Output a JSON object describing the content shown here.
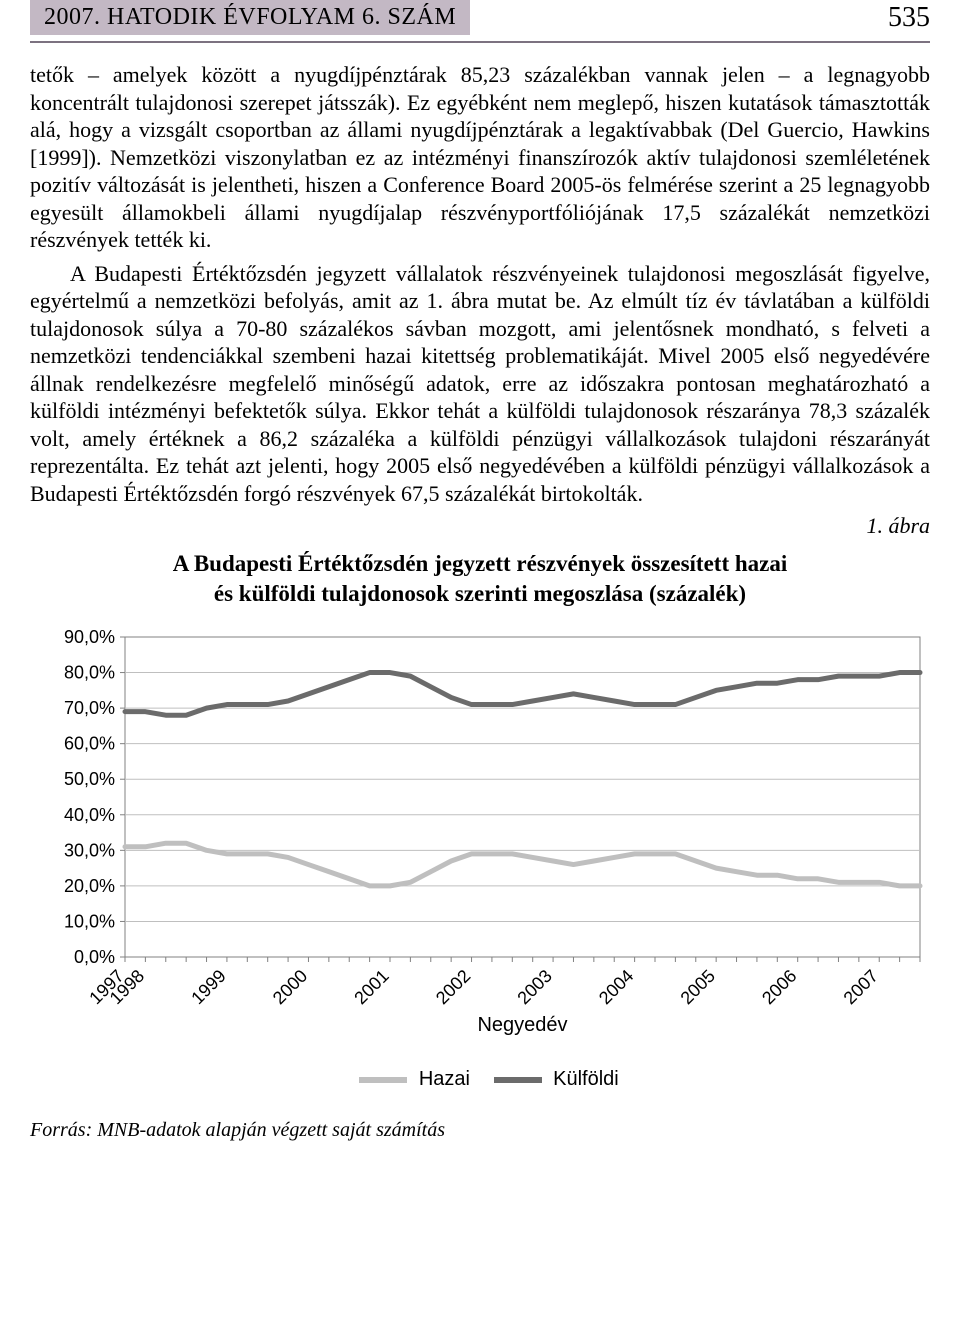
{
  "header": {
    "band_text": "2007. HATODIK ÉVFOLYAM 6. SZÁM",
    "page_number": "535"
  },
  "paragraphs": {
    "p1": "tetők – amelyek között a nyugdíjpénztárak 85,23 százalékban vannak jelen – a legnagyobb koncentrált tulajdonosi szerepet játsszák). Ez egyébként nem meglepő, hiszen kutatások támasztották alá, hogy a vizsgált csoportban az állami nyugdíjpénztárak a legaktívabbak (Del Guercio, Hawkins [1999]). Nemzetközi viszonylatban ez az intézményi finanszírozók aktív tulajdonosi szemléletének pozitív változását is jelentheti, hiszen a Conference Board 2005-ös felmérése szerint a 25 legnagyobb egyesült államokbeli állami nyugdíjalap részvényportfóliójának 17,5 százalékát nemzetközi részvények tették ki.",
    "p2": "A Budapesti Értéktőzsdén jegyzett vállalatok részvényeinek tulajdonosi megoszlását figyelve, egyértelmű a nemzetközi befolyás, amit az 1. ábra mutat be. Az elmúlt tíz év távlatában a külföldi tulajdonosok súlya a 70-80 százalékos sávban mozgott, ami jelentősnek mondható, s felveti a nemzetközi tendenciákkal szembeni hazai kitettség problematikáját. Mivel 2005 első negyedévére állnak rendelkezésre megfelelő minőségű adatok, erre az időszakra pontosan meghatározható a külföldi intézményi befektetők súlya. Ekkor tehát a külföldi tulajdonosok részaránya 78,3 százalék volt, amely értéknek a 86,2 százaléka a külföldi pénzügyi vállalkozások tulajdoni részarányát reprezentálta. Ez tehát azt jelenti, hogy 2005 első negyedévében a külföldi pénzügyi vállalkozások a Budapesti Értéktőzsdén forgó részvények 67,5 százalékát birtokolták."
  },
  "figure": {
    "label": "1. ábra",
    "title_line1": "A Budapesti Értéktőzsdén jegyzett részvények összesített hazai",
    "title_line2": "és külföldi tulajdonosok szerinti megoszlása (százalék)"
  },
  "chart": {
    "type": "line",
    "background_color": "#ffffff",
    "plot_background": "#ffffff",
    "plot_border_color": "#808080",
    "grid_color": "#bfbfbf",
    "axis_color": "#808080",
    "axis_font_family": "Arial",
    "axis_fontsize": 18,
    "axis_title_fontsize": 20,
    "x_axis_title": "Negyedév",
    "ylim": [
      0,
      90
    ],
    "ytick_step": 10,
    "ytick_labels": [
      "0,0%",
      "10,0%",
      "20,0%",
      "30,0%",
      "40,0%",
      "50,0%",
      "60,0%",
      "70,0%",
      "80,0%",
      "90,0%"
    ],
    "x_years": [
      "1997",
      "1998",
      "1999",
      "2000",
      "2001",
      "2002",
      "2003",
      "2004",
      "2005",
      "2006",
      "2007"
    ],
    "x_year_positions": [
      0,
      1,
      5,
      9,
      13,
      17,
      21,
      25,
      29,
      33,
      37
    ],
    "x_count": 40,
    "series": {
      "hazai": {
        "label": "Hazai",
        "color": "#bfbfbf",
        "width": 5,
        "values": [
          31,
          31,
          32,
          32,
          30,
          29,
          29,
          29,
          28,
          26,
          24,
          22,
          20,
          20,
          21,
          24,
          27,
          29,
          29,
          29,
          28,
          27,
          26,
          27,
          28,
          29,
          29,
          29,
          27,
          25,
          24,
          23,
          23,
          22,
          22,
          21,
          21,
          21,
          20,
          20
        ]
      },
      "kulfoldi": {
        "label": "Külföldi",
        "color": "#6b6b6b",
        "width": 5,
        "values": [
          69,
          69,
          68,
          68,
          70,
          71,
          71,
          71,
          72,
          74,
          76,
          78,
          80,
          80,
          79,
          76,
          73,
          71,
          71,
          71,
          72,
          73,
          74,
          73,
          72,
          71,
          71,
          71,
          73,
          75,
          76,
          77,
          77,
          78,
          78,
          79,
          79,
          79,
          80,
          80
        ]
      }
    },
    "legend": {
      "items": [
        "Hazai",
        "Külföldi"
      ]
    }
  },
  "source": {
    "label": "Forrás:",
    "text": " MNB-adatok alapján végzett saját számítás"
  }
}
